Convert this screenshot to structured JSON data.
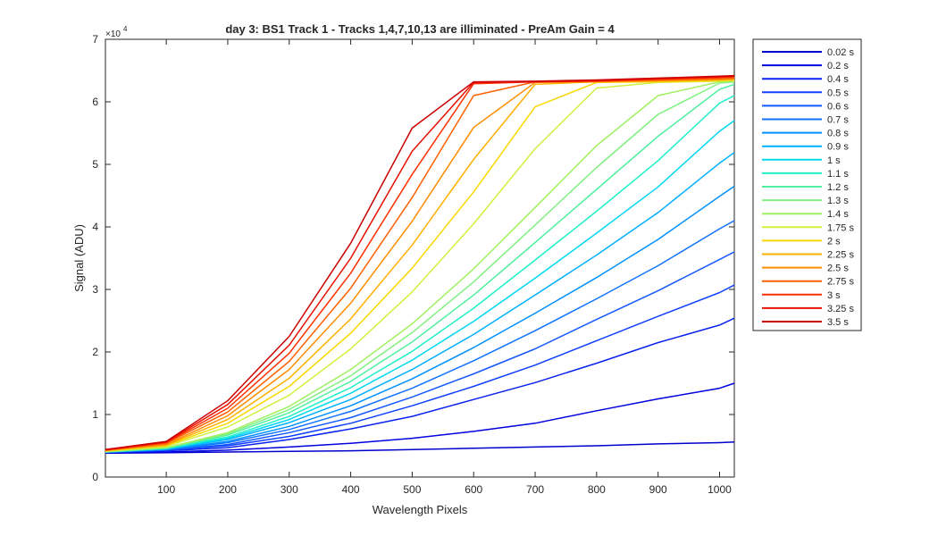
{
  "chart_data": {
    "type": "line",
    "title": "day 3: BS1  Track 1 - Tracks 1,4,7,10,13 are illiminated - PreAm Gain = 4",
    "xlabel": "Wavelength Pixels",
    "ylabel": "Signal (ADU)",
    "y_exponent_label": "×10",
    "y_exponent_power": "4",
    "xlim": [
      1,
      1024
    ],
    "ylim": [
      0,
      70000
    ],
    "x_ticks": [
      100,
      200,
      300,
      400,
      500,
      600,
      700,
      800,
      900,
      1000
    ],
    "y_ticks": [
      0,
      10000,
      20000,
      30000,
      40000,
      50000,
      60000,
      70000
    ],
    "y_tick_labels": [
      "0",
      "1",
      "2",
      "3",
      "4",
      "5",
      "6",
      "7"
    ],
    "grid": false,
    "legend_position": "outside-right",
    "x": [
      1,
      100,
      200,
      300,
      400,
      500,
      600,
      700,
      800,
      900,
      1000,
      1024
    ],
    "series": [
      {
        "name": "0.02 s",
        "color": "#0000cc",
        "values": [
          3800,
          3900,
          4000,
          4100,
          4200,
          4400,
          4600,
          4800,
          5000,
          5300,
          5500,
          5600
        ]
      },
      {
        "name": "0.2 s",
        "color": "#0000e0",
        "values": [
          3900,
          4000,
          4300,
          4800,
          5400,
          6200,
          7300,
          8600,
          10600,
          12500,
          14200,
          15000
        ]
      },
      {
        "name": "0.4 s",
        "color": "#0a22f0",
        "values": [
          3900,
          4200,
          4700,
          6000,
          7700,
          9700,
          12400,
          15100,
          18200,
          21500,
          24300,
          25400
        ]
      },
      {
        "name": "0.5 s",
        "color": "#1040ff",
        "values": [
          3900,
          4300,
          5000,
          6500,
          8600,
          11400,
          14500,
          17900,
          21800,
          25700,
          29500,
          30700
        ]
      },
      {
        "name": "0.6 s",
        "color": "#1458ff",
        "values": [
          4000,
          4300,
          5200,
          7100,
          9500,
          12800,
          16500,
          20500,
          25200,
          29800,
          34800,
          36000
        ]
      },
      {
        "name": "0.7 s",
        "color": "#1072ff",
        "values": [
          4000,
          4400,
          5500,
          7600,
          10500,
          14200,
          18600,
          23400,
          28500,
          33800,
          39700,
          41000
        ]
      },
      {
        "name": "0.8 s",
        "color": "#0090ff",
        "values": [
          4000,
          4400,
          5700,
          8100,
          11400,
          15700,
          20700,
          26200,
          31900,
          38000,
          44900,
          46500
        ]
      },
      {
        "name": "0.9 s",
        "color": "#00b0ff",
        "values": [
          4000,
          4500,
          6000,
          8700,
          12400,
          17200,
          22800,
          29100,
          35500,
          42300,
          50200,
          51900
        ]
      },
      {
        "name": "1 s",
        "color": "#00d8f0",
        "values": [
          4000,
          4500,
          6200,
          9200,
          13400,
          18700,
          24900,
          31800,
          39000,
          46400,
          55300,
          57000
        ]
      },
      {
        "name": "1.1 s",
        "color": "#20f0c8",
        "values": [
          4000,
          4600,
          6400,
          9700,
          14300,
          20100,
          27000,
          34700,
          42500,
          50600,
          59800,
          61000
        ]
      },
      {
        "name": "1.2 s",
        "color": "#50f0a0",
        "values": [
          4000,
          4600,
          6700,
          10300,
          15300,
          21600,
          29100,
          37500,
          46000,
          54500,
          62000,
          62800
        ]
      },
      {
        "name": "1.3 s",
        "color": "#80f080",
        "values": [
          4100,
          4700,
          6900,
          10800,
          16200,
          23100,
          31200,
          40300,
          49500,
          58000,
          63000,
          63200
        ]
      },
      {
        "name": "1.4 s",
        "color": "#a0f060",
        "values": [
          4100,
          4700,
          7100,
          11300,
          17200,
          24500,
          33300,
          43100,
          53000,
          61000,
          63200,
          63300
        ]
      },
      {
        "name": "1.75 s",
        "color": "#d0f040",
        "values": [
          4100,
          4900,
          8000,
          13100,
          20500,
          29600,
          40500,
          52500,
          62200,
          63100,
          63300,
          63400
        ]
      },
      {
        "name": "2 s",
        "color": "#f8d800",
        "values": [
          4200,
          5000,
          8600,
          14500,
          23000,
          33400,
          45600,
          59200,
          63100,
          63200,
          63400,
          63500
        ]
      },
      {
        "name": "2.25 s",
        "color": "#ffb000",
        "values": [
          4200,
          5100,
          9200,
          15800,
          25300,
          37100,
          50800,
          62800,
          63200,
          63300,
          63500,
          63600
        ]
      },
      {
        "name": "2.5 s",
        "color": "#ff8c00",
        "values": [
          4300,
          5200,
          9800,
          17200,
          27800,
          40900,
          55900,
          63100,
          63200,
          63400,
          63600,
          63700
        ]
      },
      {
        "name": "2.75 s",
        "color": "#ff6000",
        "values": [
          4300,
          5400,
          10400,
          18500,
          30200,
          44700,
          61000,
          63200,
          63300,
          63500,
          63700,
          63800
        ]
      },
      {
        "name": "3 s",
        "color": "#ff3000",
        "values": [
          4300,
          5500,
          11000,
          19800,
          32600,
          48400,
          62900,
          63200,
          63300,
          63600,
          63900,
          64000
        ]
      },
      {
        "name": "3.25 s",
        "color": "#e81000",
        "values": [
          4400,
          5600,
          11600,
          21100,
          35000,
          52100,
          63100,
          63200,
          63400,
          63700,
          64000,
          64100
        ]
      },
      {
        "name": "3.5 s",
        "color": "#cc0000",
        "values": [
          4400,
          5700,
          12200,
          22500,
          37400,
          55800,
          63200,
          63300,
          63500,
          63800,
          64100,
          64200
        ]
      }
    ]
  }
}
